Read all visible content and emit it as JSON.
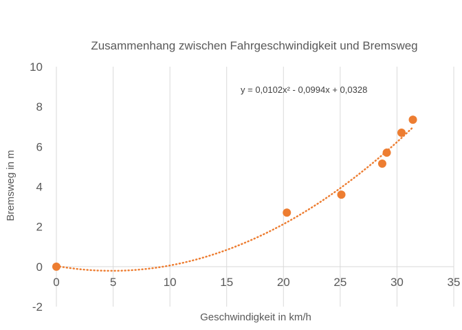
{
  "chart_data": {
    "type": "scatter",
    "title": "Zusammenhang zwischen Fahrgeschwindigkeit und Bremsweg",
    "xlabel": "Geschwindigkeit in km/h",
    "ylabel": "Bremsweg in m",
    "xlim": [
      0,
      35
    ],
    "ylim": [
      -2,
      10
    ],
    "xticks": [
      "0",
      "5",
      "10",
      "15",
      "20",
      "25",
      "30",
      "35"
    ],
    "yticks": [
      "-2",
      "0",
      "2",
      "4",
      "6",
      "8",
      "10"
    ],
    "grid": "vertical",
    "legend": "none",
    "series": [
      {
        "points": [
          {
            "x": 0,
            "y": 0
          },
          {
            "x": 20.3,
            "y": 2.7
          },
          {
            "x": 25.1,
            "y": 3.6
          },
          {
            "x": 28.7,
            "y": 5.15
          },
          {
            "x": 29.1,
            "y": 5.7
          },
          {
            "x": 30.4,
            "y": 6.7
          },
          {
            "x": 31.4,
            "y": 7.35
          }
        ]
      }
    ],
    "trendline": {
      "type": "polynomial",
      "coefficients": [
        0.0102,
        -0.0994,
        0.0328
      ],
      "equation": "y = 0,0102x² - 0,0994x + 0,0328",
      "x_range": [
        0,
        31.4
      ]
    },
    "colors": {
      "marker": "#ED7D31",
      "trendline": "#ED7D31",
      "grid": "#D9D9D9",
      "text": "#595959"
    }
  }
}
